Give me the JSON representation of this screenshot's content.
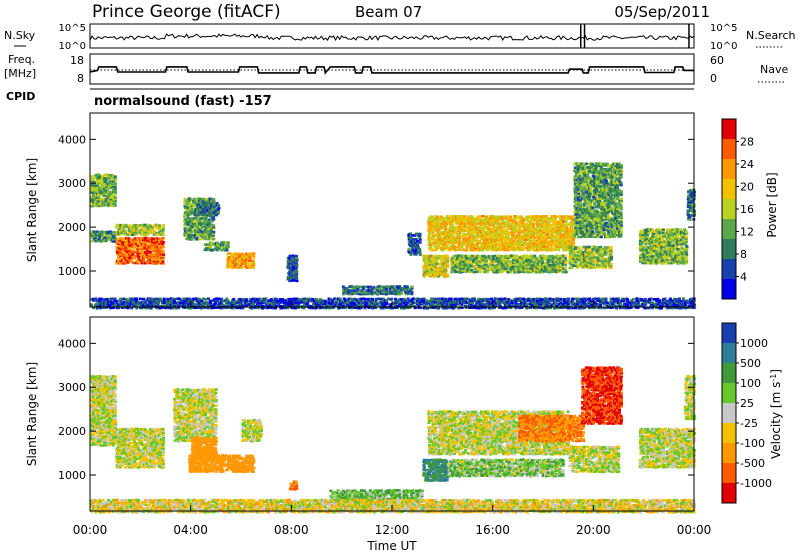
{
  "header": {
    "station": "Prince George (fitACF)",
    "beam": "Beam 07",
    "date": "05/Sep/2011"
  },
  "chart_data": [
    {
      "type": "line",
      "panel": "noise",
      "left_label": "N.Sky",
      "right_label": "N.Search",
      "left_ticks": [
        "10^5",
        "10^0"
      ],
      "right_ticks": [
        "10^5",
        "10^0"
      ],
      "x_range_hours": [
        0,
        24
      ],
      "sky_level": 0.42,
      "spikes_hours": [
        19.5,
        19.65,
        23.8
      ]
    },
    {
      "type": "line",
      "panel": "frequency",
      "left_label_lines": [
        "Freq.",
        "[MHz]"
      ],
      "right_label": "Nave",
      "left_ticks": [
        "18",
        "8"
      ],
      "right_ticks": [
        "60",
        "0"
      ],
      "x_range_hours": [
        0,
        24
      ],
      "freq_mhz": [
        [
          0,
          11.2
        ],
        [
          0.3,
          11.9
        ],
        [
          0.35,
          13.4
        ],
        [
          1.05,
          13.4
        ],
        [
          1.1,
          11.2
        ],
        [
          3.0,
          11.2
        ],
        [
          3.05,
          13.4
        ],
        [
          3.85,
          13.4
        ],
        [
          3.9,
          11.2
        ],
        [
          5.9,
          11.2
        ],
        [
          5.95,
          13.4
        ],
        [
          6.65,
          13.4
        ],
        [
          6.7,
          10.8
        ],
        [
          8.3,
          10.8
        ],
        [
          8.35,
          13.4
        ],
        [
          8.6,
          13.4
        ],
        [
          8.65,
          10.8
        ],
        [
          8.95,
          10.8
        ],
        [
          9.0,
          13.4
        ],
        [
          9.3,
          13.4
        ],
        [
          9.35,
          10.8
        ],
        [
          9.55,
          13.4
        ],
        [
          10.5,
          13.4
        ],
        [
          10.55,
          10.8
        ],
        [
          10.8,
          10.8
        ],
        [
          10.85,
          13.4
        ],
        [
          11.15,
          13.4
        ],
        [
          11.2,
          10.8
        ],
        [
          19.0,
          10.8
        ],
        [
          19.05,
          12.4
        ],
        [
          19.55,
          12.4
        ],
        [
          19.6,
          10.8
        ],
        [
          19.8,
          10.8
        ],
        [
          19.85,
          13.4
        ],
        [
          22.0,
          13.4
        ],
        [
          22.05,
          11.0
        ],
        [
          23.2,
          11.0
        ],
        [
          23.25,
          13.4
        ],
        [
          23.55,
          13.4
        ],
        [
          23.6,
          11.9
        ],
        [
          24,
          11.9
        ]
      ]
    },
    {
      "type": "text",
      "panel": "cpid",
      "label": "CPID",
      "value": "normalsound (fast) -157"
    },
    {
      "type": "heatmap",
      "panel": "power",
      "ylabel": "Slant Range [km]",
      "yticks": [
        "4000",
        "3000",
        "2000",
        "1000"
      ],
      "ylim_km": [
        180,
        4600
      ],
      "x_range_hours": [
        0,
        24
      ],
      "colorbar_label": "Power [dB]",
      "colorbar_ticks": [
        "28",
        "24",
        "20",
        "16",
        "12",
        "8",
        "4"
      ],
      "colorbar_colors": [
        "#e00000",
        "#ff5a00",
        "#ff9800",
        "#f2c200",
        "#b8d020",
        "#5aa84a",
        "#2e7d5a",
        "#1a3fae",
        "#0000e8"
      ],
      "regions": [
        {
          "t0": 0.0,
          "t1": 1.0,
          "r0": 2500,
          "r1": 3250,
          "p": 14
        },
        {
          "t0": 0.0,
          "t1": 1.0,
          "r0": 1700,
          "r1": 1950,
          "p": 11
        },
        {
          "t0": 1.0,
          "t1": 2.9,
          "r0": 1200,
          "r1": 1800,
          "p": 26
        },
        {
          "t0": 1.0,
          "t1": 2.9,
          "r0": 1850,
          "r1": 2100,
          "p": 16
        },
        {
          "t0": 3.7,
          "t1": 4.9,
          "r0": 1750,
          "r1": 2700,
          "p": 12
        },
        {
          "t0": 4.2,
          "t1": 5.1,
          "r0": 2300,
          "r1": 2600,
          "p": 9
        },
        {
          "t0": 5.4,
          "t1": 6.5,
          "r0": 1100,
          "r1": 1450,
          "p": 22
        },
        {
          "t0": 4.5,
          "t1": 5.5,
          "r0": 1500,
          "r1": 1700,
          "p": 12
        },
        {
          "t0": 7.8,
          "t1": 8.2,
          "r0": 800,
          "r1": 1400,
          "p": 7
        },
        {
          "t0": 10.0,
          "t1": 12.8,
          "r0": 500,
          "r1": 700,
          "p": 9
        },
        {
          "t0": 12.6,
          "t1": 13.1,
          "r0": 1400,
          "r1": 1900,
          "p": 7
        },
        {
          "t0": 13.2,
          "t1": 14.2,
          "r0": 900,
          "r1": 1400,
          "p": 18
        },
        {
          "t0": 13.4,
          "t1": 19.2,
          "r0": 1500,
          "r1": 2300,
          "p": 20
        },
        {
          "t0": 14.3,
          "t1": 18.9,
          "r0": 1000,
          "r1": 1400,
          "p": 14
        },
        {
          "t0": 19.2,
          "t1": 21.1,
          "r0": 1800,
          "r1": 3500,
          "p": 12
        },
        {
          "t0": 19.0,
          "t1": 20.7,
          "r0": 1100,
          "r1": 1600,
          "p": 15
        },
        {
          "t0": 21.8,
          "t1": 23.7,
          "r0": 1200,
          "r1": 2000,
          "p": 14
        },
        {
          "t0": 23.7,
          "t1": 24.0,
          "r0": 2200,
          "r1": 2900,
          "p": 9
        },
        {
          "t0": 0.0,
          "t1": 24.0,
          "r0": 180,
          "r1": 420,
          "p": 6
        }
      ]
    },
    {
      "type": "heatmap",
      "panel": "velocity",
      "ylabel": "Slant Range [km]",
      "yticks": [
        "4000",
        "3000",
        "2000",
        "1000"
      ],
      "ylim_km": [
        180,
        4600
      ],
      "x_range_hours": [
        0,
        24
      ],
      "xticks": [
        "00:00",
        "04:00",
        "08:00",
        "12:00",
        "16:00",
        "20:00",
        "00:00"
      ],
      "xlabel": "Time UT",
      "colorbar_label": "Velocity [m s⁻¹]",
      "colorbar_label_text": "Velocity",
      "colorbar_label_unit": "[m s",
      "colorbar_label_exp": "-1",
      "colorbar_ticks": [
        "1000",
        "500",
        "100",
        "25",
        "-25",
        "-100",
        "-500",
        "-1000"
      ],
      "colorbar_colors": [
        "#1a3fae",
        "#2e7d9a",
        "#3f9a3a",
        "#66c82a",
        "#c8c8c8",
        "#f2c200",
        "#ff9800",
        "#ff5a00",
        "#e00000"
      ],
      "regions": [
        {
          "t0": 0.0,
          "t1": 1.0,
          "r0": 1700,
          "r1": 3300,
          "v": 0
        },
        {
          "t0": 1.0,
          "t1": 2.9,
          "r0": 1200,
          "r1": 2100,
          "v": 0
        },
        {
          "t0": 3.3,
          "t1": 5.0,
          "r0": 1800,
          "r1": 3000,
          "v": 0
        },
        {
          "t0": 4.0,
          "t1": 5.0,
          "r0": 1400,
          "r1": 1900,
          "v": -200
        },
        {
          "t0": 3.9,
          "t1": 6.5,
          "r0": 1100,
          "r1": 1500,
          "v": -200
        },
        {
          "t0": 6.0,
          "t1": 6.8,
          "r0": 1800,
          "r1": 2300,
          "v": 0
        },
        {
          "t0": 7.9,
          "t1": 8.2,
          "r0": 700,
          "r1": 900,
          "v": -300
        },
        {
          "t0": 9.5,
          "t1": 13.2,
          "r0": 420,
          "r1": 700,
          "v": 80
        },
        {
          "t0": 13.2,
          "t1": 14.2,
          "r0": 900,
          "r1": 1400,
          "v": 300
        },
        {
          "t0": 13.4,
          "t1": 19.0,
          "r0": 1500,
          "r1": 2500,
          "v": 0
        },
        {
          "t0": 14.2,
          "t1": 18.8,
          "r0": 1000,
          "r1": 1400,
          "v": 60
        },
        {
          "t0": 17.0,
          "t1": 19.6,
          "r0": 1800,
          "r1": 2400,
          "v": -300
        },
        {
          "t0": 19.5,
          "t1": 21.1,
          "r0": 2200,
          "r1": 3500,
          "v": -700
        },
        {
          "t0": 19.0,
          "t1": 21.0,
          "r0": 1100,
          "r1": 1700,
          "v": 0
        },
        {
          "t0": 21.8,
          "t1": 24.0,
          "r0": 1200,
          "r1": 2100,
          "v": 0
        },
        {
          "t0": 23.6,
          "t1": 24.0,
          "r0": 2300,
          "r1": 3300,
          "v": 0
        },
        {
          "t0": 0.0,
          "t1": 24.0,
          "r0": 180,
          "r1": 480,
          "v": -30
        }
      ]
    }
  ]
}
